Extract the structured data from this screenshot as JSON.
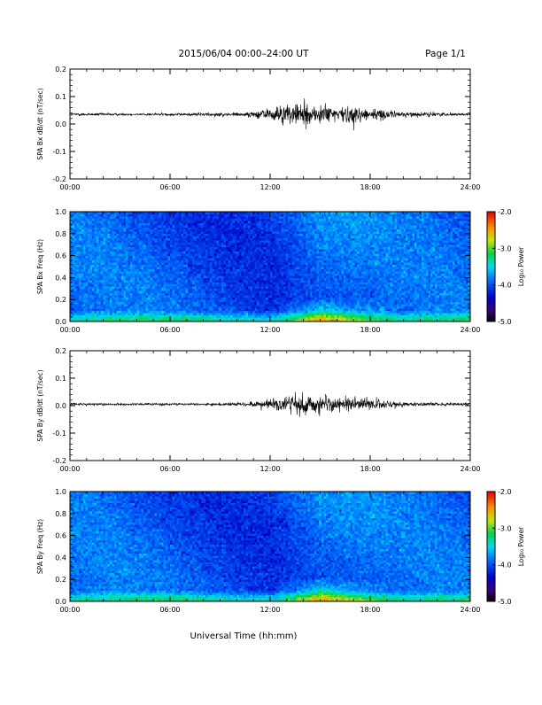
{
  "header": {
    "title": "2015/06/04  00:00–24:00 UT",
    "page": "Page 1/1"
  },
  "x_axis_title": "Universal Time (hh:mm)",
  "chart_data": [
    {
      "type": "line",
      "ylabel": "SPA Bx dB/dt (nT/sec)",
      "xlim": [
        "00:00",
        "24:00"
      ],
      "ylim": [
        -0.2,
        0.2
      ],
      "x_ticks": [
        "00:00",
        "06:00",
        "12:00",
        "18:00",
        "24:00"
      ],
      "y_ticks": [
        "-0.2",
        "-0.1",
        "0.0",
        "0.1",
        "0.2"
      ],
      "baseline": 0.035,
      "envelope": {
        "hours": [
          0,
          2,
          4,
          6,
          8,
          10,
          11,
          12,
          13,
          14,
          15,
          16,
          17,
          18,
          19,
          20,
          22,
          24
        ],
        "half_width": [
          0.006,
          0.006,
          0.005,
          0.006,
          0.008,
          0.01,
          0.015,
          0.03,
          0.045,
          0.055,
          0.045,
          0.04,
          0.035,
          0.032,
          0.02,
          0.012,
          0.008,
          0.006
        ]
      }
    },
    {
      "type": "heatmap",
      "ylabel": "SPA Bx Freq (Hz)",
      "colorbar_label": "Log₁₀ Power",
      "xlim": [
        "00:00",
        "24:00"
      ],
      "ylim": [
        0.0,
        1.0
      ],
      "x_ticks": [
        "00:00",
        "06:00",
        "12:00",
        "18:00",
        "24:00"
      ],
      "y_ticks": [
        "0.0",
        "0.2",
        "0.4",
        "0.6",
        "0.8",
        "1.0"
      ],
      "colorbar_range": [
        -5.0,
        -2.0
      ],
      "colorbar_ticks": [
        "-2.0",
        "-3.0",
        "-4.0",
        "-5.0"
      ],
      "low_freq_enhancement": {
        "start": "12:00",
        "peak": "15:00",
        "end": "20:00"
      }
    },
    {
      "type": "line",
      "ylabel": "SPA By dB/dt (nT/sec)",
      "xlim": [
        "00:00",
        "24:00"
      ],
      "ylim": [
        -0.2,
        0.2
      ],
      "x_ticks": [
        "00:00",
        "06:00",
        "12:00",
        "18:00",
        "24:00"
      ],
      "y_ticks": [
        "-0.2",
        "-0.1",
        "0.0",
        "0.1",
        "0.2"
      ],
      "baseline": 0.005,
      "envelope": {
        "hours": [
          0,
          2,
          4,
          6,
          8,
          10,
          11,
          12,
          13,
          14,
          15,
          16,
          17,
          18,
          19,
          20,
          22,
          24
        ],
        "half_width": [
          0.006,
          0.005,
          0.005,
          0.005,
          0.006,
          0.008,
          0.012,
          0.025,
          0.04,
          0.055,
          0.045,
          0.035,
          0.03,
          0.028,
          0.018,
          0.01,
          0.008,
          0.006
        ]
      }
    },
    {
      "type": "heatmap",
      "ylabel": "SPA By Freq (Hz)",
      "colorbar_label": "Log₁₀ Power",
      "xlim": [
        "00:00",
        "24:00"
      ],
      "ylim": [
        0.0,
        1.0
      ],
      "x_ticks": [
        "00:00",
        "06:00",
        "12:00",
        "18:00",
        "24:00"
      ],
      "y_ticks": [
        "0.0",
        "0.2",
        "0.4",
        "0.6",
        "0.8",
        "1.0"
      ],
      "colorbar_range": [
        -5.0,
        -2.0
      ],
      "colorbar_ticks": [
        "-2.0",
        "-3.0",
        "-4.0",
        "-5.0"
      ],
      "low_freq_enhancement": {
        "start": "12:00",
        "peak": "15:00",
        "end": "20:00"
      }
    }
  ]
}
